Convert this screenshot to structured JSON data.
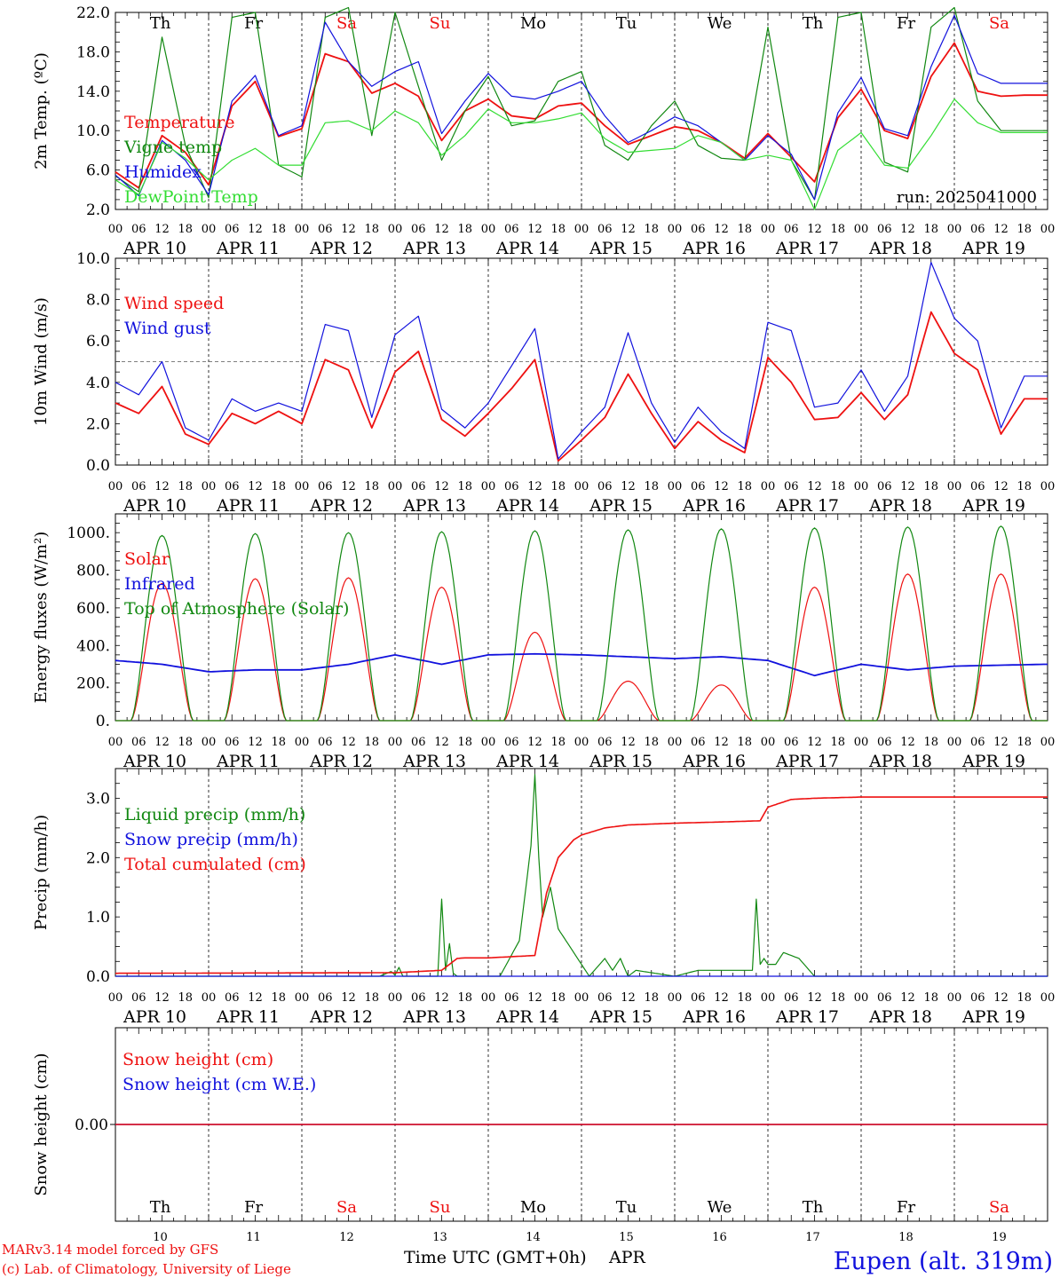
{
  "days": {
    "weekday_labels": [
      "Th",
      "Fr",
      "Sa",
      "Su",
      "Mo",
      "Tu",
      "We",
      "Th",
      "Fr",
      "Sa"
    ],
    "weekend_flags": [
      false,
      false,
      true,
      true,
      false,
      false,
      false,
      false,
      false,
      true
    ],
    "date_labels": [
      "APR 10",
      "APR 11",
      "APR 12",
      "APR 13",
      "APR 14",
      "APR 15",
      "APR 16",
      "APR 17",
      "APR 18",
      "APR 19"
    ],
    "day_numbers": [
      "10",
      "11",
      "12",
      "13",
      "14",
      "15",
      "16",
      "17",
      "18",
      "19"
    ],
    "hour_ticks": [
      "00",
      "06",
      "12",
      "18"
    ],
    "final_tick": "00"
  },
  "colors": {
    "red": "#ee1111",
    "green": "#118811",
    "blue": "#1111dd",
    "lightgreen": "#33dd33",
    "black": "#000000"
  },
  "footer": {
    "credit_line1": "MARv3.14 model forced by GFS",
    "credit_line2": "(c) Lab. of Climatology, University of Liege",
    "x_axis_title": "Time UTC (GMT+0h)",
    "month": "APR",
    "station": "Eupen (alt. 319m)"
  },
  "chart_data": [
    {
      "id": "temperature",
      "type": "line",
      "ylabel": "2m Temp. (ºC)",
      "ylim": [
        2,
        22
      ],
      "yticks": [
        "22.0",
        "18.0",
        "14.0",
        "10.0",
        "6.0",
        "2.0"
      ],
      "ytick_values": [
        22,
        18,
        14,
        10,
        6,
        2
      ],
      "x_hours": [
        0,
        6,
        12,
        18,
        24,
        30,
        36,
        42,
        48,
        54,
        60,
        66,
        72,
        78,
        84,
        90,
        96,
        102,
        108,
        114,
        120,
        126,
        132,
        138,
        144,
        150,
        156,
        162,
        168,
        174,
        180,
        186,
        192,
        198,
        204,
        210,
        216,
        222,
        228,
        234,
        240
      ],
      "annotation": "run: 2025041000",
      "series": [
        {
          "name": "Temperature",
          "color": "red",
          "values": [
            5.8,
            4.2,
            9.5,
            7.8,
            4.5,
            12.5,
            15.0,
            9.4,
            10.2,
            17.8,
            17.0,
            13.8,
            14.8,
            13.5,
            9.0,
            12.0,
            13.2,
            11.5,
            11.2,
            12.5,
            12.8,
            10.5,
            8.6,
            9.5,
            10.4,
            10.0,
            8.8,
            7.2,
            9.7,
            7.3,
            4.8,
            11.3,
            14.2,
            10.0,
            9.2,
            15.5,
            18.9,
            14.0,
            13.5,
            13.6,
            13.6
          ]
        },
        {
          "name": "Vigne temp",
          "color": "green",
          "values": [
            5.4,
            3.8,
            19.5,
            8.5,
            3.2,
            21.5,
            22.0,
            6.5,
            5.3,
            21.5,
            22.5,
            9.5,
            22.0,
            14.5,
            7.0,
            12.0,
            15.5,
            10.5,
            11.0,
            15.0,
            16.0,
            8.5,
            7.0,
            10.5,
            13.0,
            8.5,
            7.2,
            7.0,
            20.5,
            7.0,
            3.0,
            21.5,
            22.0,
            6.8,
            5.8,
            20.5,
            22.5,
            13.0,
            10.0,
            10.0,
            10.0
          ]
        },
        {
          "name": "Humidex",
          "color": "blue",
          "values": [
            5.5,
            3.4,
            9.0,
            7.0,
            3.5,
            13.0,
            15.6,
            9.5,
            10.5,
            21.0,
            17.0,
            14.5,
            16.0,
            17.0,
            9.7,
            13.0,
            15.8,
            13.5,
            13.2,
            14.0,
            15.0,
            11.5,
            8.8,
            10.0,
            11.4,
            10.5,
            8.8,
            7.0,
            9.5,
            7.6,
            3.0,
            11.8,
            15.4,
            10.2,
            9.5,
            16.5,
            21.7,
            15.8,
            14.8,
            14.8,
            14.8
          ]
        },
        {
          "name": "DewPoint Temp",
          "color": "lightgreen",
          "values": [
            5.0,
            3.5,
            8.8,
            7.2,
            5.0,
            7.0,
            8.2,
            6.5,
            6.5,
            10.8,
            11.0,
            10.0,
            12.0,
            10.8,
            7.5,
            9.5,
            12.2,
            10.8,
            10.8,
            11.2,
            11.8,
            9.2,
            7.8,
            8.0,
            8.2,
            9.5,
            8.8,
            7.0,
            7.5,
            7.0,
            2.0,
            8.0,
            9.8,
            6.5,
            6.2,
            9.5,
            13.2,
            10.8,
            9.8,
            9.8,
            9.8
          ]
        }
      ]
    },
    {
      "id": "wind",
      "type": "line",
      "ylabel": "10m Wind (m/s)",
      "ylim": [
        0,
        10
      ],
      "yticks": [
        "10.0",
        "8.0",
        "6.0",
        "4.0",
        "2.0",
        "0.0"
      ],
      "ytick_values": [
        10,
        8,
        6,
        4,
        2,
        0
      ],
      "reference_line": 5,
      "x_hours": [
        0,
        6,
        12,
        18,
        24,
        30,
        36,
        42,
        48,
        54,
        60,
        66,
        72,
        78,
        84,
        90,
        96,
        102,
        108,
        114,
        120,
        126,
        132,
        138,
        144,
        150,
        156,
        162,
        168,
        174,
        180,
        186,
        192,
        198,
        204,
        210,
        216,
        222,
        228,
        234,
        240
      ],
      "series": [
        {
          "name": "Wind speed",
          "color": "red",
          "values": [
            3.0,
            2.5,
            3.8,
            1.5,
            1.0,
            2.5,
            2.0,
            2.6,
            2.0,
            5.1,
            4.6,
            1.8,
            4.5,
            5.5,
            2.2,
            1.4,
            2.5,
            3.7,
            5.1,
            0.2,
            1.2,
            2.3,
            4.4,
            2.5,
            0.8,
            2.1,
            1.2,
            0.6,
            5.2,
            4.0,
            2.2,
            2.3,
            3.5,
            2.2,
            3.4,
            7.4,
            5.4,
            4.6,
            1.5,
            3.2,
            3.2
          ]
        },
        {
          "name": "Wind gust",
          "color": "blue",
          "values": [
            4.0,
            3.4,
            5.0,
            1.8,
            1.2,
            3.2,
            2.6,
            3.0,
            2.6,
            6.8,
            6.5,
            2.3,
            6.3,
            7.2,
            2.7,
            1.8,
            3.0,
            4.8,
            6.6,
            0.3,
            1.6,
            2.8,
            6.4,
            3.0,
            1.1,
            2.8,
            1.6,
            0.8,
            6.9,
            6.5,
            2.8,
            3.0,
            4.6,
            2.6,
            4.3,
            9.8,
            7.1,
            6.0,
            1.8,
            4.3,
            4.3
          ]
        }
      ]
    },
    {
      "id": "energy",
      "type": "line",
      "ylabel": "Energy fluxes (W/m²)",
      "ylim": [
        0,
        1100
      ],
      "yticks": [
        "1000.",
        "800.",
        "600.",
        "400.",
        "200.",
        "0."
      ],
      "ytick_values": [
        1000,
        800,
        600,
        400,
        200,
        0
      ],
      "daily_peaks": {
        "Solar": [
          730,
          755,
          760,
          710,
          470,
          210,
          190,
          710,
          780,
          780
        ],
        "Top of Atmosphere (Solar)": [
          985,
          995,
          1000,
          1005,
          1010,
          1015,
          1020,
          1025,
          1030,
          1035
        ]
      },
      "series": [
        {
          "name": "Solar",
          "color": "red"
        },
        {
          "name": "Infrared",
          "color": "blue",
          "x_hours": [
            0,
            12,
            24,
            36,
            48,
            60,
            72,
            84,
            96,
            108,
            120,
            132,
            144,
            156,
            168,
            180,
            192,
            204,
            216,
            240
          ],
          "values": [
            320,
            300,
            260,
            270,
            270,
            300,
            350,
            300,
            350,
            355,
            350,
            340,
            330,
            340,
            320,
            240,
            300,
            270,
            290,
            300
          ]
        },
        {
          "name": "Top of Atmosphere (Solar)",
          "color": "green"
        }
      ]
    },
    {
      "id": "precip",
      "type": "line",
      "ylabel": "Precip (mm/h)",
      "ylim": [
        0,
        3.5
      ],
      "yticks": [
        "3.0",
        "2.0",
        "1.0",
        "0.0"
      ],
      "ytick_values": [
        3,
        2,
        1,
        0
      ],
      "series": [
        {
          "name": "Liquid precip (mm/h)",
          "color": "green",
          "x_hours": [
            0,
            68,
            71,
            72,
            73,
            74,
            83,
            84,
            85,
            86,
            87,
            88,
            99,
            104,
            107,
            108,
            109,
            110,
            112,
            114,
            120,
            122,
            126,
            128,
            130,
            132,
            134,
            144,
            150,
            164,
            165,
            166,
            167,
            168,
            170,
            172,
            176,
            180,
            240
          ],
          "values": [
            0,
            0,
            0.08,
            0.02,
            0.15,
            0,
            0,
            1.3,
            0.1,
            0.55,
            0.05,
            0,
            0,
            0.6,
            2.2,
            3.4,
            2.0,
            1.0,
            1.5,
            0.8,
            0.2,
            0,
            0.3,
            0.1,
            0.3,
            0,
            0.1,
            0,
            0.1,
            0.1,
            1.3,
            0.2,
            0.3,
            0.2,
            0.2,
            0.4,
            0.3,
            0,
            0
          ]
        },
        {
          "name": "Snow precip (mm/h)",
          "color": "blue",
          "x_hours": [
            0,
            240
          ],
          "values": [
            0,
            0
          ]
        },
        {
          "name": "Total cumulated (cm)",
          "color": "red",
          "x_hours": [
            0,
            72,
            84,
            88,
            90,
            96,
            108,
            111,
            114,
            118,
            120,
            126,
            132,
            144,
            156,
            166,
            168,
            174,
            180,
            192,
            240
          ],
          "values": [
            0.05,
            0.06,
            0.1,
            0.3,
            0.31,
            0.31,
            0.35,
            1.4,
            2.0,
            2.3,
            2.38,
            2.5,
            2.55,
            2.58,
            2.6,
            2.62,
            2.85,
            2.98,
            3.0,
            3.02,
            3.02
          ]
        }
      ]
    },
    {
      "id": "snow",
      "type": "line",
      "ylabel": "Snow height (cm)",
      "yticks": [
        "0.00"
      ],
      "series": [
        {
          "name": "Snow height (cm)",
          "color": "red",
          "values": [
            0,
            0
          ]
        },
        {
          "name": "Snow height (cm W.E.)",
          "color": "blue",
          "values": [
            0,
            0
          ]
        }
      ]
    }
  ]
}
